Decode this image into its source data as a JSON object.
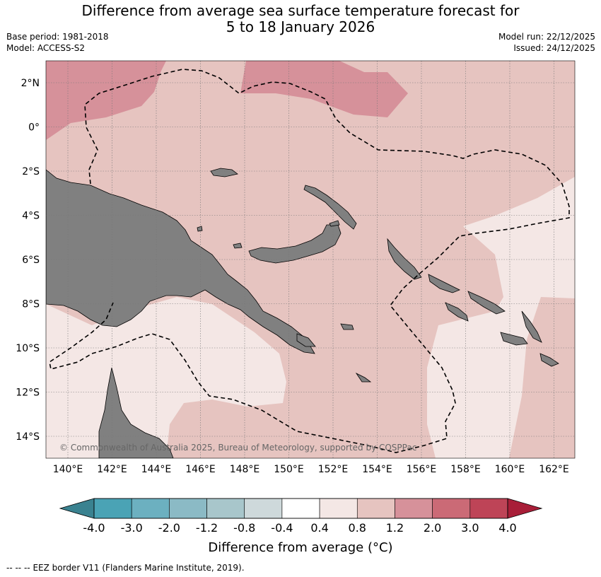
{
  "title_line1": "Difference from average sea surface temperature forecast for",
  "title_line2": "5 to 18 January 2026",
  "base_period": "Base period: 1981-2018",
  "model": "Model: ACCESS-S2",
  "model_run": "Model run: 22/12/2025",
  "issued": "Issued: 24/12/2025",
  "lat_labels": [
    "2°N",
    "0°",
    "2°S",
    "4°S",
    "6°S",
    "8°S",
    "10°S",
    "12°S",
    "14°S"
  ],
  "lon_labels": [
    "140°E",
    "142°E",
    "144°E",
    "146°E",
    "148°E",
    "150°E",
    "152°E",
    "154°E",
    "156°E",
    "158°E",
    "160°E",
    "162°E"
  ],
  "copyright": "© Commonwealth of Australia 2025, Bureau of Meteorology, supported by COSPPac",
  "colorbar": {
    "ticks": [
      "-4.0",
      "-3.0",
      "-2.0",
      "-1.2",
      "-0.8",
      "-0.4",
      "0.4",
      "0.8",
      "1.2",
      "2.0",
      "3.0",
      "4.0"
    ],
    "colors": [
      "#4aa3b5",
      "#6cb0c0",
      "#8bbac5",
      "#a8c6cb",
      "#ced9db",
      "#ffffff",
      "#f4e7e5",
      "#e6c4c0",
      "#d6919a",
      "#cb6a76",
      "#be4457"
    ],
    "under_color": "#3a8290",
    "over_color": "#a81e38",
    "label": "Difference from average (°C)"
  },
  "legend_note": "EEZ border V11 (Flanders Marine Institute, 2019).",
  "legend_line_symbol": "-- -- --",
  "colors": {
    "land": "#808080",
    "fill_0p4_0p8": "#f4e7e5",
    "fill_0p8_1p2": "#e6c4c0",
    "fill_1p2_2p0": "#d6919a"
  }
}
